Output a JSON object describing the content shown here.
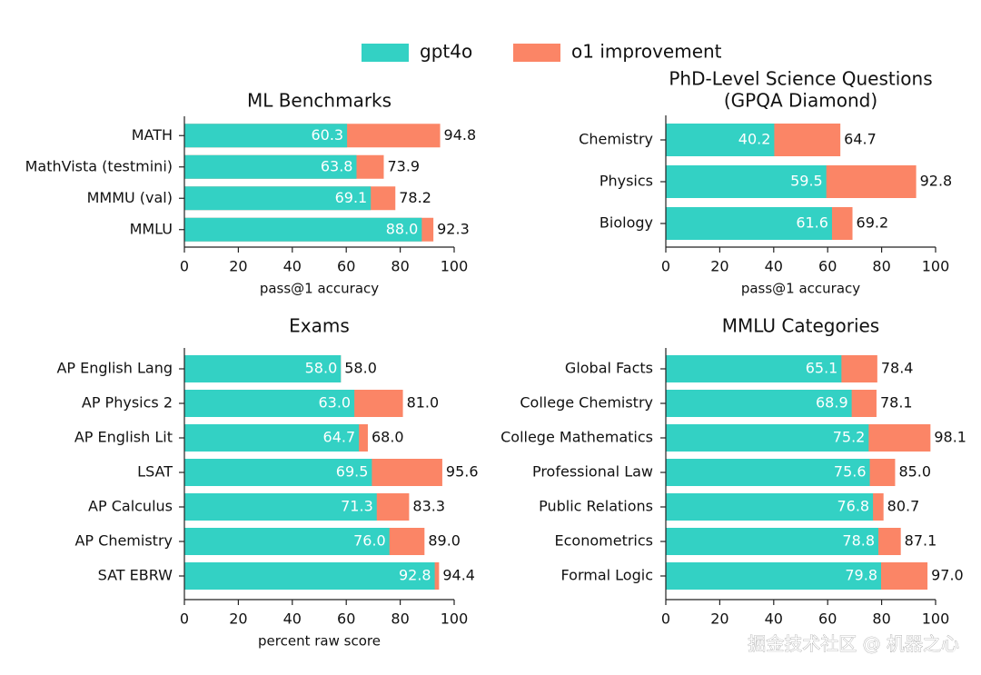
{
  "legend_corner": "top",
  "watermark": "掘金技术社区 @ 机器之心",
  "chart_data": [
    {
      "type": "bar",
      "orientation": "horizontal",
      "title": "ML Benchmarks",
      "xlabel": "pass@1 accuracy",
      "categories": [
        "MATH",
        "MathVista (testmini)",
        "MMMU (val)",
        "MMLU"
      ],
      "series": [
        {
          "name": "gpt4o",
          "color": "#33d1c4",
          "values": [
            60.3,
            63.8,
            69.1,
            88.0
          ],
          "value_labels": [
            "60.3",
            "63.8",
            "69.1",
            "88.0"
          ]
        },
        {
          "name": "o1 improvement",
          "color": "#fb8566",
          "values": [
            94.8,
            73.9,
            78.2,
            92.3
          ],
          "value_labels": [
            "94.8",
            "73.9",
            "78.2",
            "92.3"
          ]
        }
      ],
      "xlim": [
        0,
        100
      ],
      "xticks": [
        0,
        20,
        40,
        60,
        80,
        100
      ]
    },
    {
      "type": "bar",
      "orientation": "horizontal",
      "title": "PhD-Level Science Questions",
      "subtitle": "(GPQA Diamond)",
      "xlabel": "pass@1 accuracy",
      "categories": [
        "Chemistry",
        "Physics",
        "Biology"
      ],
      "series": [
        {
          "color": "#33d1c4",
          "values": [
            40.2,
            59.5,
            61.6
          ],
          "value_labels": [
            "40.2",
            "59.5",
            "61.6"
          ]
        },
        {
          "color": "#fb8566",
          "values": [
            64.7,
            92.8,
            69.2
          ],
          "value_labels": [
            "64.7",
            "92.8",
            "69.2"
          ]
        }
      ],
      "xlim": [
        0,
        100
      ],
      "xticks": [
        0,
        20,
        40,
        60,
        80,
        100
      ]
    },
    {
      "type": "bar",
      "orientation": "horizontal",
      "title": "Exams",
      "xlabel": "percent raw score",
      "categories": [
        "AP English Lang",
        "AP Physics 2",
        "AP English Lit",
        "LSAT",
        "AP Calculus",
        "AP Chemistry",
        "SAT EBRW"
      ],
      "series": [
        {
          "color": "#33d1c4",
          "values": [
            58.0,
            63.0,
            64.7,
            69.5,
            71.3,
            76.0,
            92.8
          ],
          "value_labels": [
            "58.0",
            "63.0",
            "64.7",
            "69.5",
            "71.3",
            "76.0",
            "92.8"
          ]
        },
        {
          "color": "#fb8566",
          "values": [
            58.0,
            81.0,
            68.0,
            95.6,
            83.3,
            89.0,
            94.4
          ],
          "value_labels": [
            "58.0",
            "81.0",
            "68.0",
            "95.6",
            "83.3",
            "89.0",
            "94.4"
          ]
        }
      ],
      "xlim": [
        0,
        100
      ],
      "xticks": [
        0,
        20,
        40,
        60,
        80,
        100
      ]
    },
    {
      "type": "bar",
      "orientation": "horizontal",
      "title": "MMLU Categories",
      "categories": [
        "Global Facts",
        "College Chemistry",
        "College Mathematics",
        "Professional Law",
        "Public Relations",
        "Econometrics",
        "Formal Logic"
      ],
      "series": [
        {
          "color": "#33d1c4",
          "values": [
            65.1,
            68.9,
            75.2,
            75.6,
            76.8,
            78.8,
            79.8
          ],
          "value_labels": [
            "65.1",
            "68.9",
            "75.2",
            "75.6",
            "76.8",
            "78.8",
            "79.8"
          ]
        },
        {
          "color": "#fb8566",
          "values": [
            78.4,
            78.1,
            98.1,
            85.0,
            80.7,
            87.1,
            97.0
          ],
          "value_labels": [
            "78.4",
            "78.1",
            "98.1",
            "85.0",
            "80.7",
            "87.1",
            "97.0"
          ]
        }
      ],
      "xlim": [
        0,
        100
      ],
      "xticks": [
        0,
        20,
        40,
        60,
        80,
        100
      ]
    }
  ]
}
